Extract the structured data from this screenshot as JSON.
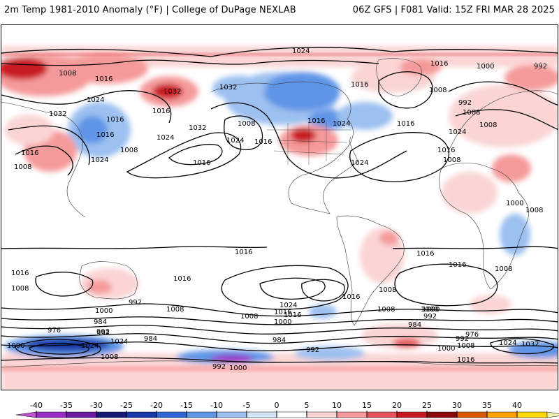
{
  "header": {
    "title_left": "2m Temp 1981-2010 Anomaly (°F) | College of DuPage NEXLAB",
    "title_right": "06Z GFS | F081 Valid: 15Z FRI MAR 28 2025"
  },
  "colorbar": {
    "ticks": [
      "-40",
      "-35",
      "-30",
      "-25",
      "-20",
      "-15",
      "-10",
      "-5",
      "0",
      "5",
      "10",
      "15",
      "20",
      "25",
      "30",
      "35",
      "40"
    ],
    "colors": [
      "#c452d4",
      "#9b2ec8",
      "#6b1ca3",
      "#16187a",
      "#1638a8",
      "#2f68d6",
      "#5f94e6",
      "#9cc0f0",
      "#d4e4f8",
      "#ffffff",
      "#fbd4d4",
      "#f59a9a",
      "#e5545a",
      "#c81a22",
      "#8a0a0a",
      "#d85a00",
      "#ffa000",
      "#ffd800",
      "#f0f0b0"
    ]
  },
  "map": {
    "isobar_labels": [
      {
        "text": "1024"
      },
      {
        "text": "1008"
      },
      {
        "text": "1016"
      },
      {
        "text": "1032"
      },
      {
        "text": "1024"
      },
      {
        "text": "1016"
      },
      {
        "text": "1016"
      },
      {
        "text": "1008"
      },
      {
        "text": "1016"
      },
      {
        "text": "1024"
      },
      {
        "text": "1008"
      },
      {
        "text": "1032"
      },
      {
        "text": "1016"
      },
      {
        "text": "1024"
      },
      {
        "text": "1032"
      },
      {
        "text": "1032"
      },
      {
        "text": "1008"
      },
      {
        "text": "1024"
      },
      {
        "text": "1016"
      },
      {
        "text": "1016"
      },
      {
        "text": "1024"
      },
      {
        "text": "1016"
      },
      {
        "text": "1016"
      },
      {
        "text": "1016"
      },
      {
        "text": "1000"
      },
      {
        "text": "992"
      },
      {
        "text": "1008"
      },
      {
        "text": "992"
      },
      {
        "text": "1008"
      },
      {
        "text": "1024"
      },
      {
        "text": "1008"
      },
      {
        "text": "1016"
      },
      {
        "text": "1016"
      },
      {
        "text": "1008"
      },
      {
        "text": "1000"
      },
      {
        "text": "1008"
      },
      {
        "text": "1008"
      },
      {
        "text": "1016"
      },
      {
        "text": "1008"
      },
      {
        "text": "1016"
      },
      {
        "text": "1024"
      },
      {
        "text": "1016"
      },
      {
        "text": "1016"
      },
      {
        "text": "1016"
      },
      {
        "text": "1008"
      },
      {
        "text": "1016"
      },
      {
        "text": "1024"
      },
      {
        "text": "1016"
      },
      {
        "text": "1008"
      },
      {
        "text": "1000"
      },
      {
        "text": "992"
      },
      {
        "text": "992"
      },
      {
        "text": "1008"
      },
      {
        "text": "1000"
      },
      {
        "text": "984"
      },
      {
        "text": "976"
      },
      {
        "text": "992"
      },
      {
        "text": "1024"
      },
      {
        "text": "984"
      },
      {
        "text": "1000"
      },
      {
        "text": "1008"
      },
      {
        "text": "1024"
      },
      {
        "text": "1016"
      },
      {
        "text": "1008"
      },
      {
        "text": "984"
      },
      {
        "text": "1000"
      },
      {
        "text": "1008"
      },
      {
        "text": "992"
      },
      {
        "text": "976"
      },
      {
        "text": "1000"
      },
      {
        "text": "992"
      },
      {
        "text": "1000"
      },
      {
        "text": "1024"
      },
      {
        "text": "1032"
      },
      {
        "text": "1016"
      },
      {
        "text": "992"
      },
      {
        "text": "984"
      },
      {
        "text": "992"
      },
      {
        "text": "1000"
      }
    ]
  }
}
